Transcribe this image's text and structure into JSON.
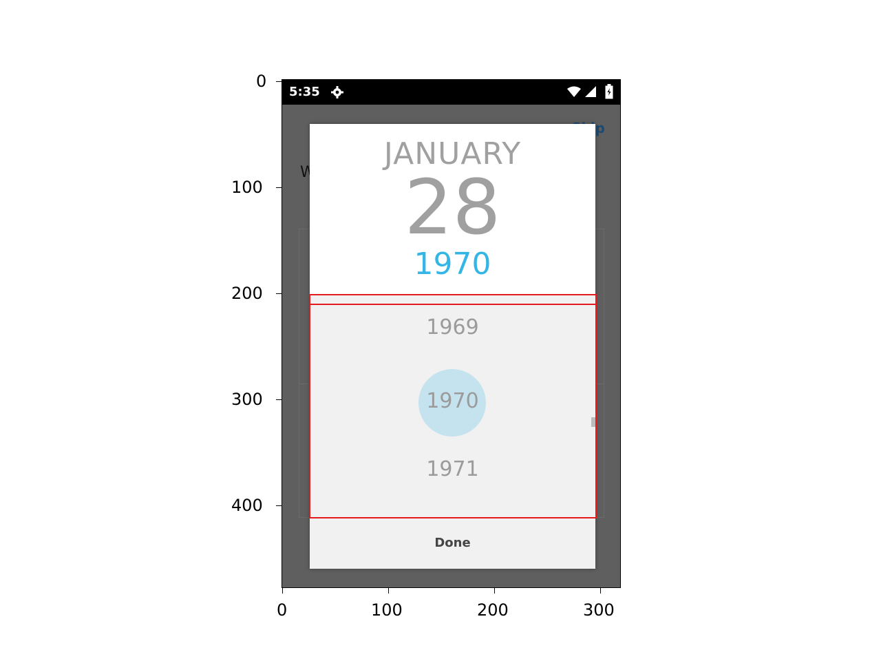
{
  "axes": {
    "y_ticks": [
      "0",
      "100",
      "200",
      "300",
      "400"
    ],
    "x_ticks": [
      "0",
      "100",
      "200",
      "300"
    ]
  },
  "status_bar": {
    "time": "5:35",
    "icons": [
      "settings-icon",
      "wifi-icon",
      "signal-icon",
      "battery-icon"
    ]
  },
  "background": {
    "skip_label": "Skip",
    "partial_letter": "W"
  },
  "date_picker": {
    "month": "JANUARY",
    "day": "28",
    "year": "1970",
    "year_list": [
      "1969",
      "1970",
      "1971"
    ],
    "selected_year": "1970",
    "done_label": "Done"
  },
  "colors": {
    "accent": "#33b5e5",
    "selection_circle": "#c5e3ef",
    "highlight": "#e41a1c",
    "scrim": "#5f5f5f"
  }
}
